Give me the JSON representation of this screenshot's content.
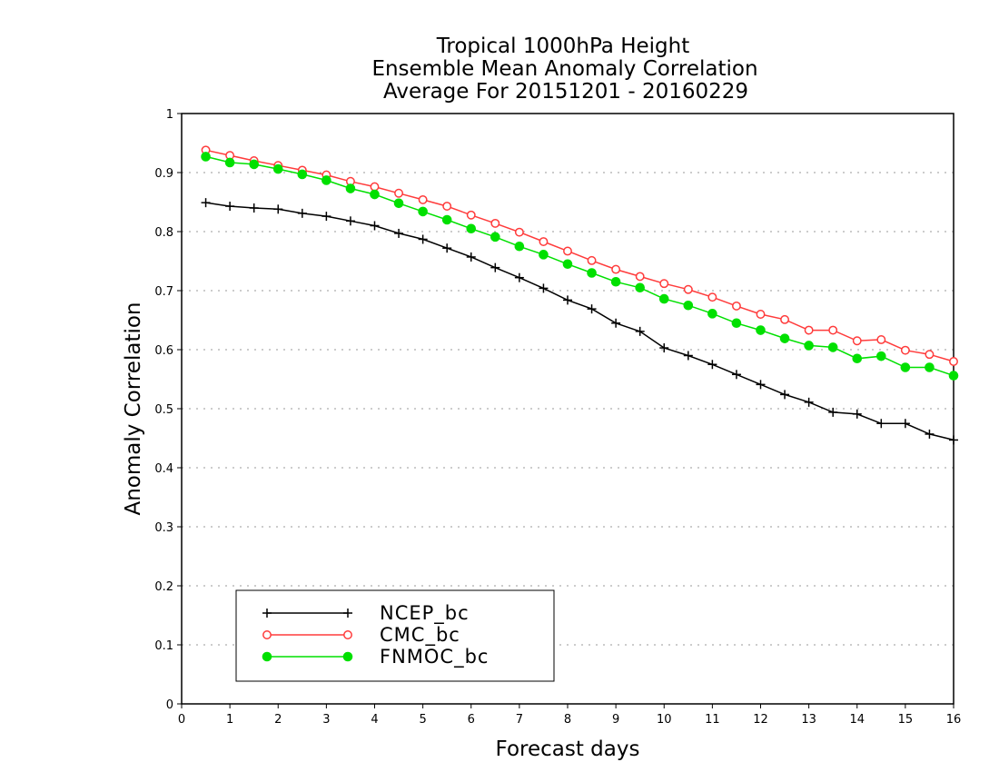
{
  "chart_data": {
    "type": "line",
    "title": [
      "Tropical 1000hPa Height",
      "Ensemble Mean Anomaly Correlation",
      "Average For 20151201 - 20160229"
    ],
    "xlabel": "Forecast days",
    "ylabel": "Anomaly Correlation",
    "xlim": [
      0,
      16
    ],
    "ylim": [
      0,
      1
    ],
    "xticks": [
      "0",
      "1",
      "2",
      "3",
      "4",
      "5",
      "6",
      "7",
      "8",
      "9",
      "10",
      "11",
      "12",
      "13",
      "14",
      "15",
      "16"
    ],
    "yticks": [
      "0",
      "0.1",
      "0.2",
      "0.3",
      "0.4",
      "0.5",
      "0.6",
      "0.7",
      "0.8",
      "0.9",
      "1"
    ],
    "grid": true,
    "legend_position": "bottom-left",
    "x": [
      0.5,
      1,
      1.5,
      2,
      2.5,
      3,
      3.5,
      4,
      4.5,
      5,
      5.5,
      6,
      6.5,
      7,
      7.5,
      8,
      8.5,
      9,
      9.5,
      10,
      10.5,
      11,
      11.5,
      12,
      12.5,
      13,
      13.5,
      14,
      14.5,
      15,
      15.5,
      16
    ],
    "series": [
      {
        "name": "NCEP_bc",
        "color": "#000000",
        "marker": "plus",
        "values": [
          0.849,
          0.843,
          0.84,
          0.838,
          0.831,
          0.826,
          0.818,
          0.81,
          0.797,
          0.787,
          0.772,
          0.757,
          0.739,
          0.722,
          0.704,
          0.684,
          0.669,
          0.645,
          0.631,
          0.603,
          0.59,
          0.575,
          0.558,
          0.541,
          0.524,
          0.511,
          0.494,
          0.491,
          0.475,
          0.475,
          0.457,
          0.447
        ]
      },
      {
        "name": "CMC_bc",
        "color": "#ff3b3b",
        "marker": "open-circle",
        "values": [
          0.938,
          0.929,
          0.92,
          0.912,
          0.904,
          0.896,
          0.885,
          0.876,
          0.865,
          0.854,
          0.843,
          0.828,
          0.814,
          0.799,
          0.783,
          0.767,
          0.751,
          0.736,
          0.724,
          0.712,
          0.702,
          0.689,
          0.674,
          0.66,
          0.651,
          0.633,
          0.633,
          0.615,
          0.617,
          0.599,
          0.592,
          0.58
        ]
      },
      {
        "name": "FNMOC_bc",
        "color": "#00e000",
        "marker": "filled-circle",
        "values": [
          0.927,
          0.917,
          0.914,
          0.906,
          0.897,
          0.887,
          0.873,
          0.863,
          0.848,
          0.834,
          0.82,
          0.805,
          0.791,
          0.775,
          0.761,
          0.745,
          0.73,
          0.715,
          0.705,
          0.686,
          0.675,
          0.661,
          0.645,
          0.633,
          0.619,
          0.607,
          0.604,
          0.585,
          0.589,
          0.57,
          0.57,
          0.556
        ]
      }
    ]
  }
}
